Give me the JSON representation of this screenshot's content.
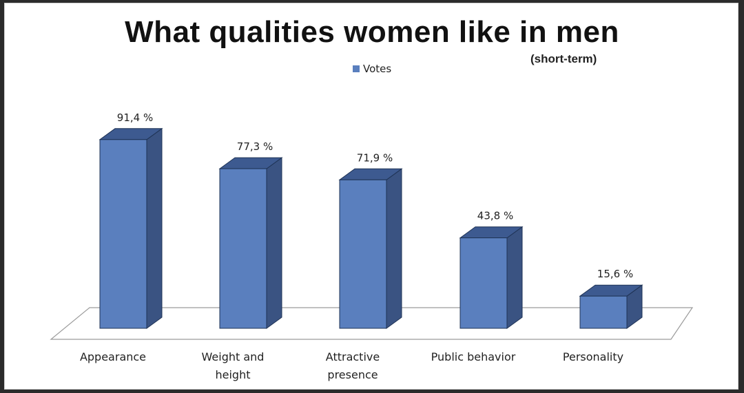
{
  "chart_data": {
    "type": "bar",
    "title": "What qualities women like in men",
    "subtitle": "(short-term)",
    "legend": {
      "placement": "top-center",
      "entries": [
        "Votes"
      ]
    },
    "categories": [
      [
        "Appearance"
      ],
      [
        "Weight and",
        "height"
      ],
      [
        "Attractive",
        "presence"
      ],
      [
        "Public behavior"
      ],
      [
        "Personality"
      ]
    ],
    "series": [
      {
        "name": "Votes",
        "values": [
          91.4,
          77.3,
          71.9,
          43.8,
          15.6
        ]
      }
    ],
    "data_labels": [
      "91,4 %",
      "77,3 %",
      "71,9 %",
      "43,8 %",
      "15,6 %"
    ],
    "ylim": [
      0,
      100
    ],
    "grid": false,
    "colors": {
      "front": "#5a7fbe",
      "top": "#3d5a90",
      "side": "#3a5382",
      "edge": "#1f3355"
    }
  }
}
